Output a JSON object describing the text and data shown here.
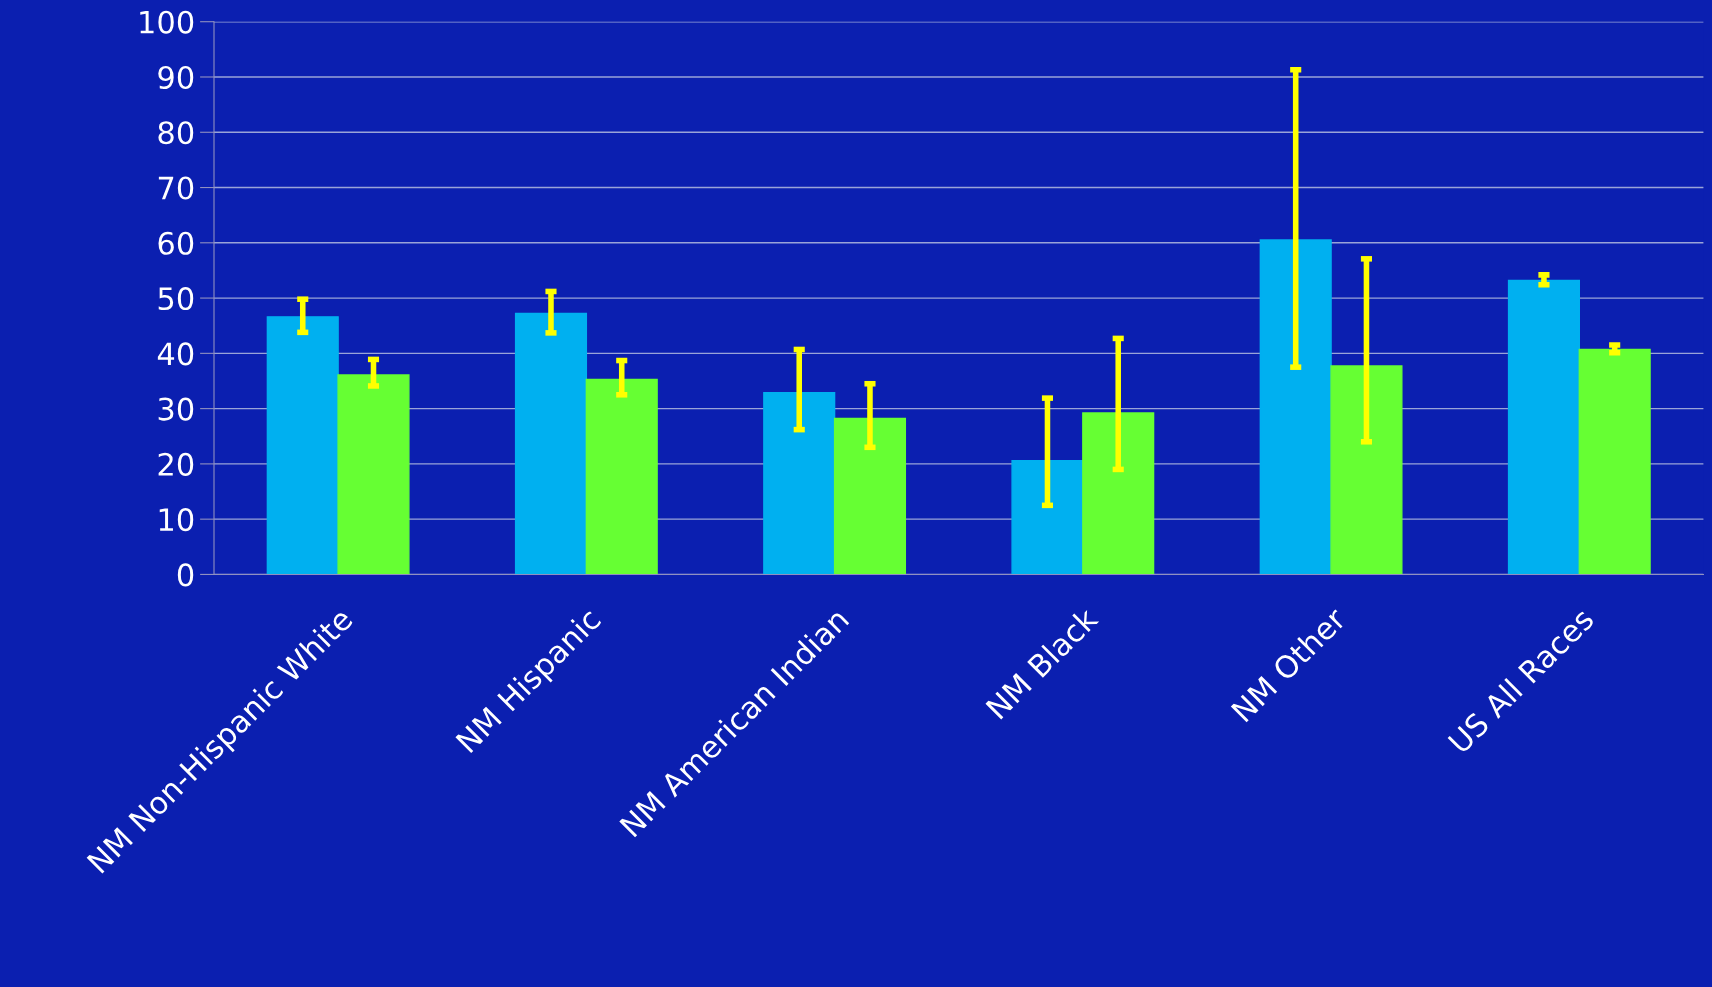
{
  "chart_data": {
    "type": "bar",
    "categories": [
      "NM Non-Hispanic White",
      "NM Hispanic",
      "NM American Indian",
      "NM Black",
      "NM Other",
      "US All Races"
    ],
    "series": [
      {
        "color": "#00b0f0",
        "values": [
          46.6,
          47.2,
          32.9,
          20.6,
          60.5,
          53.2
        ],
        "errors": [
          [
            43.8,
            49.8
          ],
          [
            43.7,
            51.2
          ],
          [
            26.2,
            40.7
          ],
          [
            12.5,
            31.9
          ],
          [
            37.5,
            91.3
          ],
          [
            52.4,
            54.2
          ]
        ]
      },
      {
        "color": "#66ff33",
        "values": [
          36.1,
          35.3,
          28.2,
          29.2,
          37.7,
          40.7
        ],
        "errors": [
          [
            34.1,
            38.9
          ],
          [
            32.5,
            38.7
          ],
          [
            23.0,
            34.5
          ],
          [
            19.0,
            42.7
          ],
          [
            24.0,
            57.1
          ],
          [
            40.1,
            41.5
          ]
        ]
      }
    ],
    "ylim": [
      0,
      100
    ],
    "yticks": [
      0,
      10,
      20,
      30,
      40,
      50,
      60,
      70,
      80,
      90,
      100
    ],
    "grid": "y",
    "legend": false
  }
}
